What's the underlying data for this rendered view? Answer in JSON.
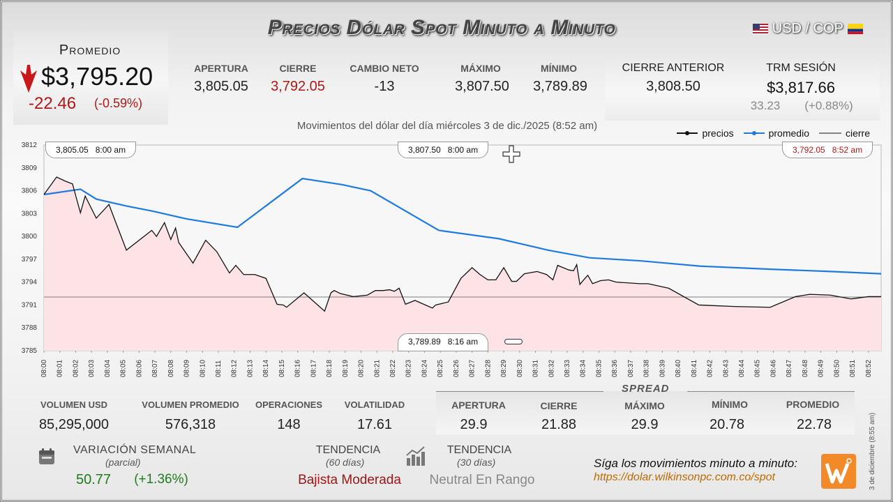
{
  "title": "Precios Dólar Spot Minuto a Minuto",
  "pair": "USD / COP",
  "summary": {
    "avg_label": "Promedio",
    "avg_value": "$3,795.20",
    "avg_change": "-22.46",
    "avg_pct": "(-0.59%)",
    "apertura_label": "APERTURA",
    "apertura": "3,805.05",
    "cierre_label": "CIERRE",
    "cierre": "3,792.05",
    "cambio_label": "CAMBIO NETO",
    "cambio": "-13",
    "max_label": "MÁXIMO",
    "max": "3,807.50",
    "min_label": "MÍNIMO",
    "min": "3,789.89",
    "prev_label": "CIERRE ANTERIOR",
    "prev": "3,808.50",
    "trm_label": "TRM SESIÓN",
    "trm": "$3,817.66",
    "trm_change": "33.23",
    "trm_pct": "(+0.88%)"
  },
  "colors": {
    "down": "#b01818",
    "up": "#1e7b1e",
    "avg_line": "#1f7ae0",
    "price_line": "#111111",
    "area": "#fde3e6"
  },
  "chart_data": {
    "type": "line",
    "title": "Movimientos del dólar del día miércoles 3 de dic./2025 (8:52 am)",
    "legend": [
      "precios",
      "promedio",
      "cierre"
    ],
    "legend_position": "top-right",
    "y_ticks": [
      3785,
      3788,
      3791,
      3794,
      3797,
      3800,
      3803,
      3806,
      3809,
      3812
    ],
    "ylim": [
      3785,
      3812
    ],
    "x_ticks": [
      "08:00",
      "08:01",
      "08:02",
      "08:03",
      "08:04",
      "08:05",
      "08:06",
      "08:07",
      "08:08",
      "08:09",
      "08:10",
      "08:11",
      "08:12",
      "08:13",
      "08:14",
      "08:15",
      "08:16",
      "08:17",
      "08:18",
      "08:19",
      "08:20",
      "08:21",
      "08:22",
      "08:23",
      "08:24",
      "08:25",
      "08:26",
      "08:27",
      "08:28",
      "08:29",
      "08:30",
      "08:31",
      "08:32",
      "08:33",
      "08:34",
      "08:35",
      "08:36",
      "08:37",
      "08:38",
      "08:39",
      "08:40",
      "08:41",
      "08:42",
      "08:43",
      "08:44",
      "08:45",
      "08:46",
      "08:47",
      "08:48",
      "08:49",
      "08:50",
      "08:51",
      "08:52"
    ],
    "xlim": [
      0,
      52.8
    ],
    "series": [
      {
        "name": "precios",
        "x": [
          0,
          0.8,
          1.3,
          1.8,
          2.3,
          2.6,
          3.3,
          4.1,
          4.5,
          5.2,
          6.8,
          7.1,
          7.6,
          8.0,
          8.3,
          8.5,
          8.6,
          9.4,
          10.2,
          10.9,
          11.7,
          12.1,
          12.6,
          13.3,
          14.0,
          14.7,
          15.1,
          15.3,
          16.4,
          17.7,
          18.1,
          18.3,
          18.7,
          19.5,
          20.4,
          20.9,
          21.4,
          21.8,
          22.1,
          22.4,
          22.8,
          23.4,
          24.5,
          24.7,
          25.5,
          26.3,
          27.0,
          27.5,
          28.0,
          28.5,
          29.0,
          29.5,
          29.8,
          30.3,
          31.1,
          31.7,
          32.1,
          32.4,
          33.1,
          33.4,
          33.6,
          33.8,
          34.0,
          34.3,
          34.6,
          35.1,
          35.6,
          36.1,
          37.6,
          38.1,
          39.4,
          41.3,
          43.6,
          45.8,
          47.4,
          48.3,
          49.6,
          50.9,
          52.0,
          52.8
        ],
        "y": [
          3805.5,
          3807.8,
          3807.3,
          3806.9,
          3803.1,
          3805.3,
          3802.4,
          3804.2,
          3802.0,
          3798.2,
          3800.8,
          3800.0,
          3801.8,
          3799.6,
          3801.1,
          3799.2,
          3798.9,
          3796.5,
          3799.5,
          3798.0,
          3795.2,
          3796.2,
          3795.0,
          3795.0,
          3794.5,
          3791.1,
          3791.0,
          3790.7,
          3792.6,
          3790.2,
          3792.6,
          3792.9,
          3792.5,
          3792.1,
          3792.3,
          3792.9,
          3792.9,
          3793.0,
          3792.8,
          3793.2,
          3791.1,
          3791.6,
          3790.6,
          3791.0,
          3791.4,
          3794.5,
          3795.9,
          3795.0,
          3794.3,
          3794.3,
          3795.9,
          3794.1,
          3794.1,
          3795.1,
          3795.4,
          3795.0,
          3794.3,
          3796.2,
          3795.6,
          3795.5,
          3796.3,
          3793.7,
          3794.2,
          3794.9,
          3793.8,
          3794.2,
          3794.3,
          3794.0,
          3793.8,
          3793.8,
          3793.2,
          3791.0,
          3790.8,
          3790.7,
          3792.1,
          3792.4,
          3792.3,
          3791.8,
          3792.1,
          3792.1
        ]
      },
      {
        "name": "promedio",
        "x": [
          0,
          2.3,
          3.3,
          5.2,
          6.9,
          9.0,
          12.2,
          16.3,
          18.8,
          20.6,
          24.9,
          28.7,
          31.8,
          34.4,
          37.6,
          41.4,
          45.8,
          49.6,
          52.8
        ],
        "y": [
          3805.5,
          3806.2,
          3804.9,
          3804.0,
          3803.3,
          3802.3,
          3801.2,
          3807.6,
          3806.8,
          3806.0,
          3800.8,
          3799.7,
          3798.2,
          3797.2,
          3796.8,
          3796.1,
          3795.7,
          3795.4,
          3795.1
        ]
      },
      {
        "name": "cierre",
        "y": 3792.05
      }
    ],
    "annotations": [
      {
        "text": "3,805.05",
        "time": "8:00 am",
        "x": 0,
        "y": 3805.05
      },
      {
        "text": "3,807.50",
        "time": "8:00 am",
        "x": 16,
        "y": 3807.5
      },
      {
        "text": "3,792.05",
        "time": "8:52 am",
        "x": 52.8,
        "y": 3792.05
      },
      {
        "text": "3,789.89",
        "time": "8:16 am",
        "x": 16,
        "y": 3789.89
      }
    ]
  },
  "stats": {
    "vol_label": "VOLUMEN USD",
    "vol": "85,295,000",
    "volavg_label": "VOLUMEN PROMEDIO",
    "volavg": "576,318",
    "ops_label": "OPERACIONES",
    "ops": "148",
    "volat_label": "VOLATILIDAD",
    "volat": "17.61"
  },
  "spread": {
    "title": "SPREAD",
    "apertura_label": "APERTURA",
    "apertura": "29.9",
    "cierre_label": "CIERRE",
    "cierre": "21.88",
    "max_label": "MÁXIMO",
    "max": "29.9",
    "min_label": "MÍNIMO",
    "min": "20.78",
    "prom_label": "PROMEDIO",
    "prom": "22.78"
  },
  "weekly": {
    "label": "VARIACIÓN SEMANAL",
    "sub": "(parcial)",
    "value": "50.77",
    "pct": "(+1.36%)"
  },
  "trend60": {
    "label": "TENDENCIA",
    "sub": "(60 días)",
    "value": "Bajista Moderada"
  },
  "trend30": {
    "label": "TENDENCIA",
    "sub": "(30 días)",
    "value": "Neutral En Rango"
  },
  "footer": {
    "line1": "Síga los movimientos minuto a minuto:",
    "line2": "https://dolar.wilkinsonpc.com.co/spot"
  },
  "side_date": "3 de diciembre (8:55 am)",
  "icons": [
    "calendar-icon",
    "bar-chart-icon",
    "crosshair-icon",
    "logo-icon"
  ]
}
